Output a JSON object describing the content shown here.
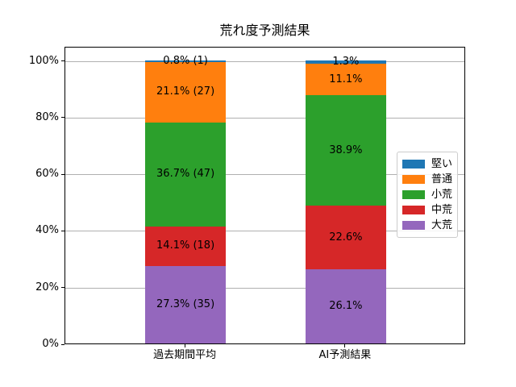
{
  "chart_data": {
    "type": "bar",
    "stacked": true,
    "title": "荒れ度予測結果",
    "categories": [
      "過去期間平均",
      "AI予測結果"
    ],
    "series": [
      {
        "name": "堅い",
        "color": "#1f77b4",
        "values": [
          0.8,
          1.3
        ],
        "labels": [
          "0.8% (1)",
          "1.3%"
        ]
      },
      {
        "name": "普通",
        "color": "#ff7f0e",
        "values": [
          21.1,
          11.1
        ],
        "labels": [
          "21.1% (27)",
          "11.1%"
        ]
      },
      {
        "name": "小荒",
        "color": "#2ca02c",
        "values": [
          36.7,
          38.9
        ],
        "labels": [
          "36.7% (47)",
          "38.9%"
        ]
      },
      {
        "name": "中荒",
        "color": "#d62728",
        "values": [
          14.1,
          22.6
        ],
        "labels": [
          "14.1% (18)",
          "22.6%"
        ]
      },
      {
        "name": "大荒",
        "color": "#9467bd",
        "values": [
          27.3,
          26.1
        ],
        "labels": [
          "27.3% (35)",
          "26.1%"
        ]
      }
    ],
    "y_ticks": [
      "0%",
      "20%",
      "40%",
      "60%",
      "80%",
      "100%"
    ],
    "ylim": [
      0,
      105
    ],
    "grid": true,
    "grid_color": "#b0b0b0",
    "legend_position": "center-right",
    "value_unit": "percent"
  }
}
